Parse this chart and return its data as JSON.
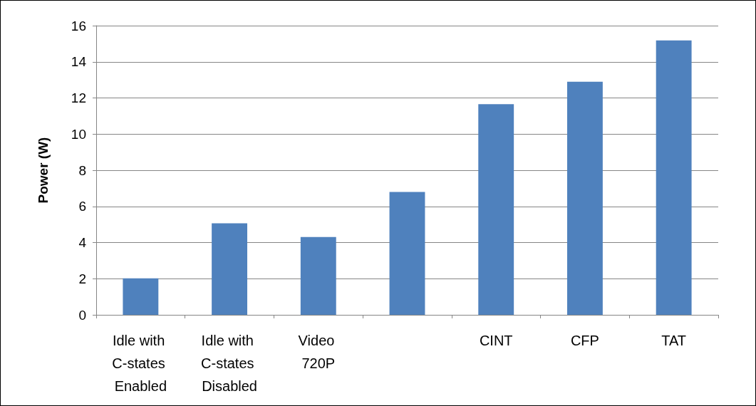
{
  "chart_data": {
    "type": "bar",
    "ylabel": "Power (W)",
    "categories": [
      "Idle with C-states Enabled",
      "Idle with C-states Disabled",
      "Video 720P",
      null,
      "CINT",
      "CFP",
      "TAT"
    ],
    "values": [
      2.02,
      5.06,
      4.31,
      6.8,
      11.66,
      12.9,
      15.18
    ],
    "color": "#4f81bd",
    "ylim": [
      0,
      16
    ],
    "yticks": [
      0,
      2,
      4,
      6,
      8,
      10,
      12,
      14,
      16
    ],
    "grid": "y"
  }
}
